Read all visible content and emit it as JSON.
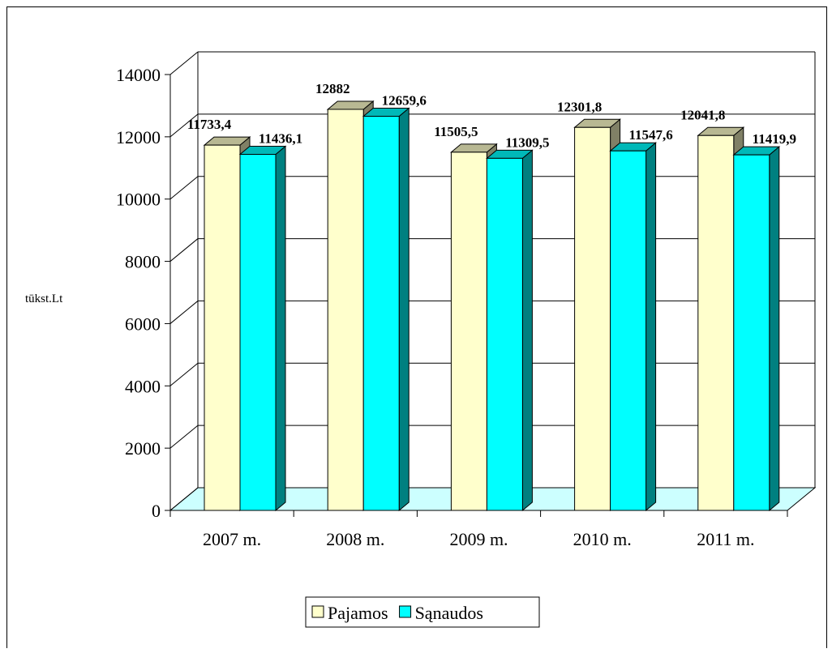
{
  "chart_data": {
    "type": "bar",
    "title": "",
    "xlabel": "",
    "ylabel": "tūkst.Lt",
    "categories": [
      "2007 m.",
      "2008 m.",
      "2009 m.",
      "2010 m.",
      "2011 m."
    ],
    "series": [
      {
        "name": "Pajamos",
        "values": [
          11733.4,
          12882,
          11505.5,
          12301.8,
          12041.8
        ],
        "labels": [
          "11733,4",
          "12882",
          "11505,5",
          "12301,8",
          "12041,8"
        ],
        "color": "#FFFFCC"
      },
      {
        "name": "Sąnaudos",
        "values": [
          11436.1,
          12659.6,
          11309.5,
          11547.6,
          11419.9
        ],
        "labels": [
          "11436,1",
          "12659,6",
          "11309,5",
          "11547,6",
          "11419,9"
        ],
        "color": "#00FFFF"
      }
    ],
    "ylim": [
      0,
      14000
    ],
    "yticks": [
      0,
      2000,
      4000,
      6000,
      8000,
      10000,
      12000,
      14000
    ],
    "grid": true,
    "three_d": true,
    "legend": "bottom-center",
    "floor_color": "#CCFFFF"
  }
}
